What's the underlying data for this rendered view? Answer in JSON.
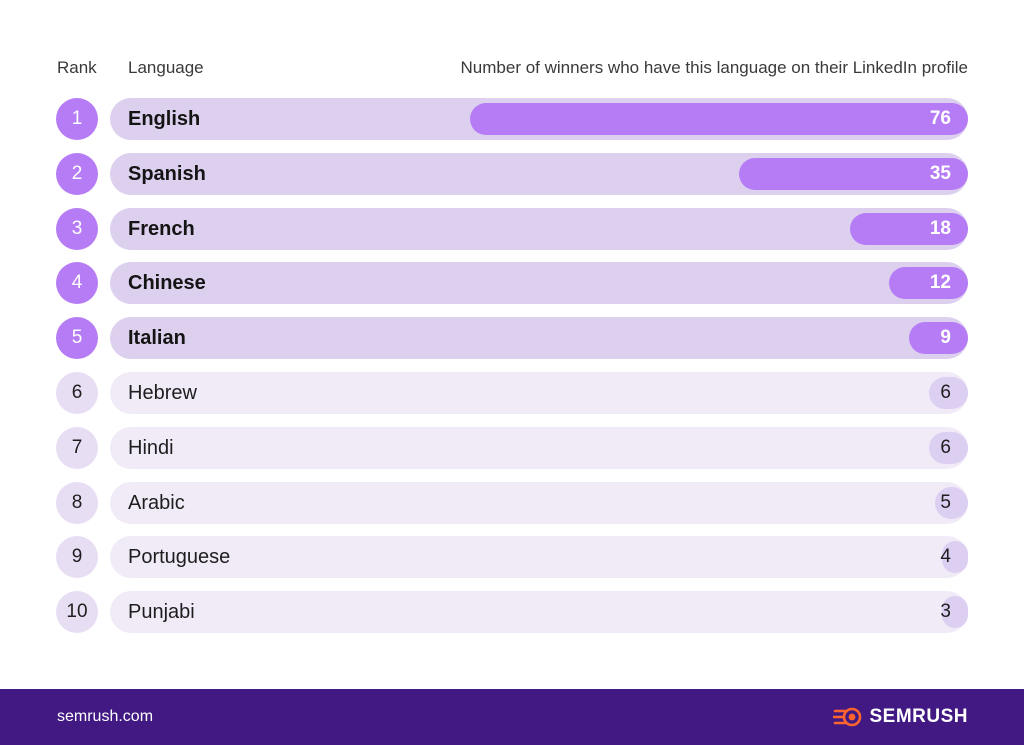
{
  "header": {
    "rank_label": "Rank",
    "language_label": "Language",
    "metric_label": "Number of winners who have this language on their LinkedIn profile"
  },
  "chart_data": {
    "type": "bar",
    "orientation": "horizontal",
    "categories": [
      "English",
      "Spanish",
      "French",
      "Chinese",
      "Italian",
      "Hebrew",
      "Hindi",
      "Arabic",
      "Portuguese",
      "Punjabi"
    ],
    "ranks": [
      "1",
      "2",
      "3",
      "4",
      "5",
      "6",
      "7",
      "8",
      "9",
      "10"
    ],
    "values": [
      76,
      35,
      18,
      12,
      9,
      6,
      6,
      5,
      4,
      3
    ],
    "highlighted_top": 5,
    "xlim": [
      0,
      130
    ]
  },
  "colors": {
    "accent": "#b67cf5",
    "accent_track": "#ddd0ef",
    "muted_bar": "#ddcff1",
    "muted_track": "#f1ebf8",
    "footer_bg": "#421983",
    "brand_orange": "#ff642d"
  },
  "footer": {
    "site": "semrush.com",
    "brand": "SEMRUSH",
    "brand_icon": "semrush-flame-icon"
  }
}
